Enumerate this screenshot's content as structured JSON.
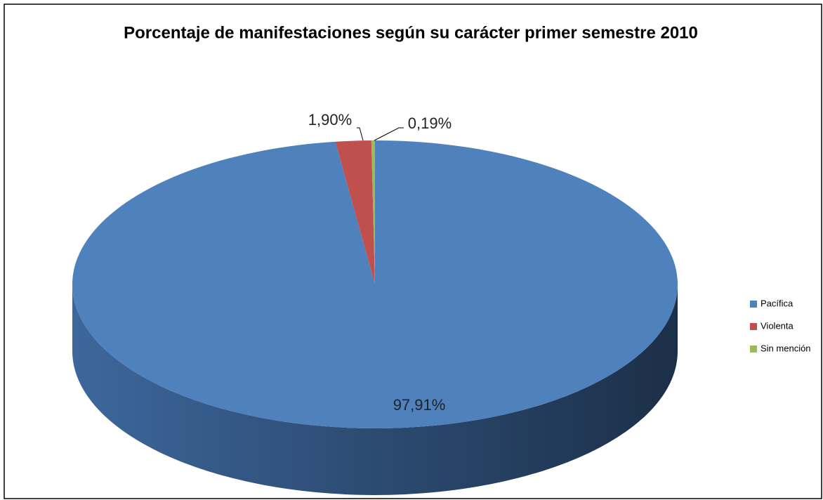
{
  "chart_data": {
    "type": "pie",
    "title": "Porcentaje de manifestaciones según su carácter primer semestre 2010",
    "categories": [
      "Pacífica",
      "Violenta",
      "Sin mención"
    ],
    "values": [
      97.91,
      1.9,
      0.19
    ],
    "value_labels": [
      "97,91%",
      "1,90%",
      "0,19%"
    ],
    "colors": [
      "#4f81bd",
      "#c0504d",
      "#9bbb59"
    ],
    "legend": "right"
  }
}
